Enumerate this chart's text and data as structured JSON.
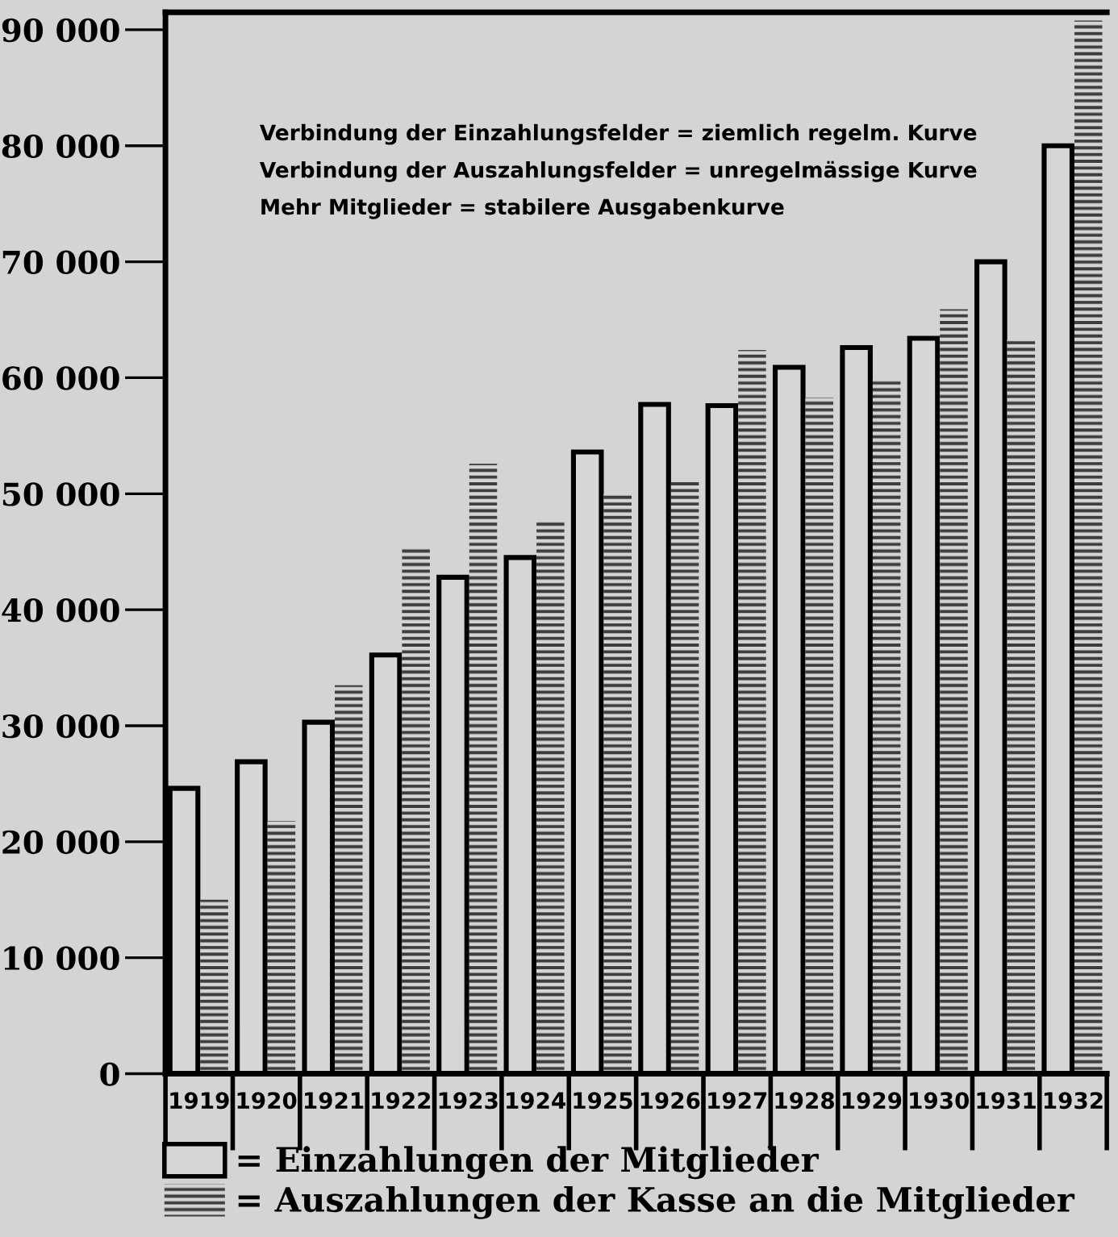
{
  "chart_data": {
    "type": "bar",
    "categories": [
      "1919",
      "1920",
      "1921",
      "1922",
      "1923",
      "1924",
      "1925",
      "1926",
      "1927",
      "1928",
      "1929",
      "1930",
      "1931",
      "1932"
    ],
    "series": [
      {
        "name": "= Einzahlungen der Mitglieder",
        "color": "#d6d6d6",
        "values": [
          24600,
          26900,
          30300,
          36100,
          42800,
          44500,
          53600,
          57700,
          57600,
          60900,
          62600,
          63400,
          70000,
          80000
        ]
      },
      {
        "name": "= Auszahlungen der Kasse an die Mitglieder",
        "color": "#3c3c3c",
        "values": [
          15000,
          21800,
          33500,
          45300,
          52600,
          47600,
          50000,
          51000,
          62400,
          58300,
          59900,
          65900,
          63300,
          90800
        ]
      }
    ],
    "ylim": [
      0,
      91500
    ],
    "yticks": [
      0,
      {
        "value": 10000,
        "label": "10 000"
      },
      {
        "value": 20000,
        "label": "20 000"
      },
      {
        "value": 30000,
        "label": "30 000"
      },
      {
        "value": 40000,
        "label": "40 000"
      },
      {
        "value": 50000,
        "label": "50 000"
      },
      {
        "value": 60000,
        "label": "60 000"
      },
      {
        "value": 70000,
        "label": "70 000"
      },
      {
        "value": 80000,
        "label": "80 000"
      },
      {
        "value": 90000,
        "label": "90 000"
      }
    ],
    "annotations": [
      "Verbindung der Einzahlungsfelder = ziemlich regelm. Kurve",
      "Verbindung der Auszahlungsfelder = unregelmässige Kurve",
      "Mehr Mitglieder = stabilere Ausgabenkurve"
    ],
    "legend": "bottom",
    "grid": false
  }
}
